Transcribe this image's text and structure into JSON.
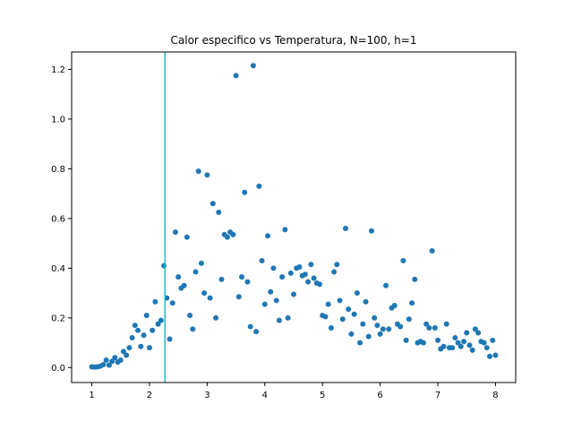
{
  "chart_data": {
    "type": "scatter",
    "title": "Calor especifico vs Temperatura, N=100, h=1",
    "xlabel": "",
    "ylabel": "",
    "xlim": [
      0.65,
      8.35
    ],
    "ylim": [
      -0.06,
      1.27
    ],
    "xticks": [
      1,
      2,
      3,
      4,
      5,
      6,
      7,
      8
    ],
    "yticks": [
      0.0,
      0.2,
      0.4,
      0.6,
      0.8,
      1.0,
      1.2
    ],
    "xtick_labels": [
      "1",
      "2",
      "3",
      "4",
      "5",
      "6",
      "7",
      "8"
    ],
    "ytick_labels": [
      "0.0",
      "0.2",
      "0.4",
      "0.6",
      "0.8",
      "1.0",
      "1.2"
    ],
    "vline_x": 2.269,
    "grid": false,
    "colors": {
      "points": "#1f77b4",
      "vline": "#17becf",
      "axes": "#000000"
    },
    "series": [
      {
        "x": [
          1.0,
          1.05,
          1.1,
          1.15,
          1.2,
          1.25,
          1.3,
          1.35,
          1.4,
          1.45,
          1.5,
          1.55,
          1.6,
          1.65,
          1.7,
          1.75,
          1.8,
          1.85,
          1.9,
          1.95,
          2.0,
          2.05,
          2.1,
          2.15,
          2.2,
          2.25,
          2.3,
          2.35,
          2.4,
          2.45,
          2.5,
          2.55,
          2.6,
          2.65,
          2.7,
          2.75,
          2.8,
          2.85,
          2.9,
          2.95,
          3.0,
          3.05,
          3.1,
          3.15,
          3.2,
          3.25,
          3.3,
          3.35,
          3.4,
          3.45,
          3.5,
          3.55,
          3.6,
          3.65,
          3.7,
          3.75,
          3.8,
          3.85,
          3.9,
          3.95,
          4.0,
          4.05,
          4.1,
          4.15,
          4.2,
          4.25,
          4.3,
          4.35,
          4.4,
          4.45,
          4.5,
          4.55,
          4.6,
          4.65,
          4.7,
          4.75,
          4.8,
          4.85,
          4.9,
          4.95,
          5.0,
          5.05,
          5.1,
          5.15,
          5.2,
          5.25,
          5.3,
          5.35,
          5.4,
          5.45,
          5.5,
          5.55,
          5.6,
          5.65,
          5.7,
          5.75,
          5.8,
          5.85,
          5.9,
          5.95,
          6.0,
          6.05,
          6.1,
          6.15,
          6.2,
          6.25,
          6.3,
          6.35,
          6.4,
          6.45,
          6.5,
          6.55,
          6.6,
          6.65,
          6.7,
          6.75,
          6.8,
          6.85,
          6.9,
          6.95,
          7.0,
          7.05,
          7.1,
          7.15,
          7.2,
          7.25,
          7.3,
          7.35,
          7.4,
          7.45,
          7.5,
          7.55,
          7.6,
          7.65,
          7.7,
          7.75,
          7.8,
          7.85,
          7.9,
          7.95,
          8.0
        ],
        "y": [
          0.003,
          0.002,
          0.003,
          0.006,
          0.012,
          0.03,
          0.01,
          0.025,
          0.04,
          0.022,
          0.03,
          0.065,
          0.05,
          0.08,
          0.12,
          0.17,
          0.15,
          0.085,
          0.13,
          0.21,
          0.08,
          0.15,
          0.265,
          0.175,
          0.19,
          0.41,
          0.28,
          0.115,
          0.26,
          0.545,
          0.365,
          0.32,
          0.33,
          0.525,
          0.21,
          0.155,
          0.385,
          0.79,
          0.42,
          0.3,
          0.775,
          0.28,
          0.66,
          0.2,
          0.625,
          0.355,
          0.535,
          0.525,
          0.545,
          0.535,
          1.175,
          0.285,
          0.365,
          0.705,
          0.345,
          0.165,
          1.215,
          0.145,
          0.73,
          0.43,
          0.255,
          0.53,
          0.305,
          0.4,
          0.27,
          0.19,
          0.365,
          0.555,
          0.2,
          0.38,
          0.295,
          0.4,
          0.405,
          0.37,
          0.375,
          0.345,
          0.415,
          0.36,
          0.34,
          0.335,
          0.21,
          0.205,
          0.255,
          0.16,
          0.385,
          0.415,
          0.27,
          0.195,
          0.56,
          0.235,
          0.135,
          0.215,
          0.3,
          0.1,
          0.175,
          0.265,
          0.125,
          0.55,
          0.2,
          0.17,
          0.135,
          0.155,
          0.33,
          0.155,
          0.24,
          0.25,
          0.175,
          0.165,
          0.43,
          0.11,
          0.195,
          0.26,
          0.355,
          0.1,
          0.105,
          0.1,
          0.175,
          0.16,
          0.47,
          0.16,
          0.11,
          0.075,
          0.085,
          0.175,
          0.08,
          0.08,
          0.12,
          0.1,
          0.085,
          0.105,
          0.14,
          0.09,
          0.07,
          0.155,
          0.14,
          0.105,
          0.1,
          0.08,
          0.045,
          0.11,
          0.05
        ]
      }
    ]
  }
}
